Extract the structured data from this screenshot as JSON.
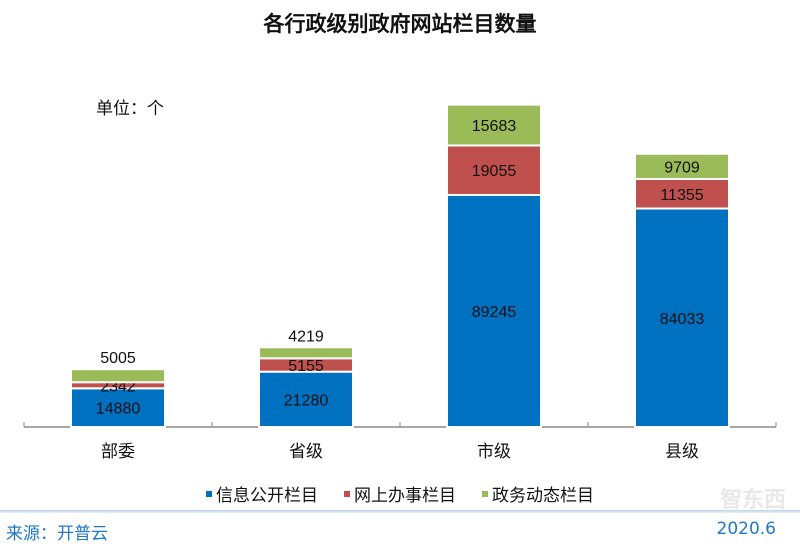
{
  "chart_data": {
    "type": "bar",
    "stacked": true,
    "title": "各行政级别政府网站栏目数量",
    "unit_label": "单位：个",
    "categories": [
      "部委",
      "省级",
      "市级",
      "县级"
    ],
    "series": [
      {
        "name": "信息公开栏目",
        "color": "#0070c0",
        "values": [
          14880,
          21280,
          89245,
          84033
        ]
      },
      {
        "name": "网上办事栏目",
        "color": "#c0504d",
        "values": [
          2342,
          5155,
          19055,
          11355
        ]
      },
      {
        "name": "政务动态栏目",
        "color": "#9bbb59",
        "values": [
          5005,
          4219,
          15683,
          9709
        ]
      }
    ],
    "ylim": [
      0,
      130000
    ],
    "grid": false,
    "legend": "bottom"
  },
  "footer": {
    "source": "来源：开普云",
    "date": "2020.6",
    "watermark": "智东西"
  }
}
